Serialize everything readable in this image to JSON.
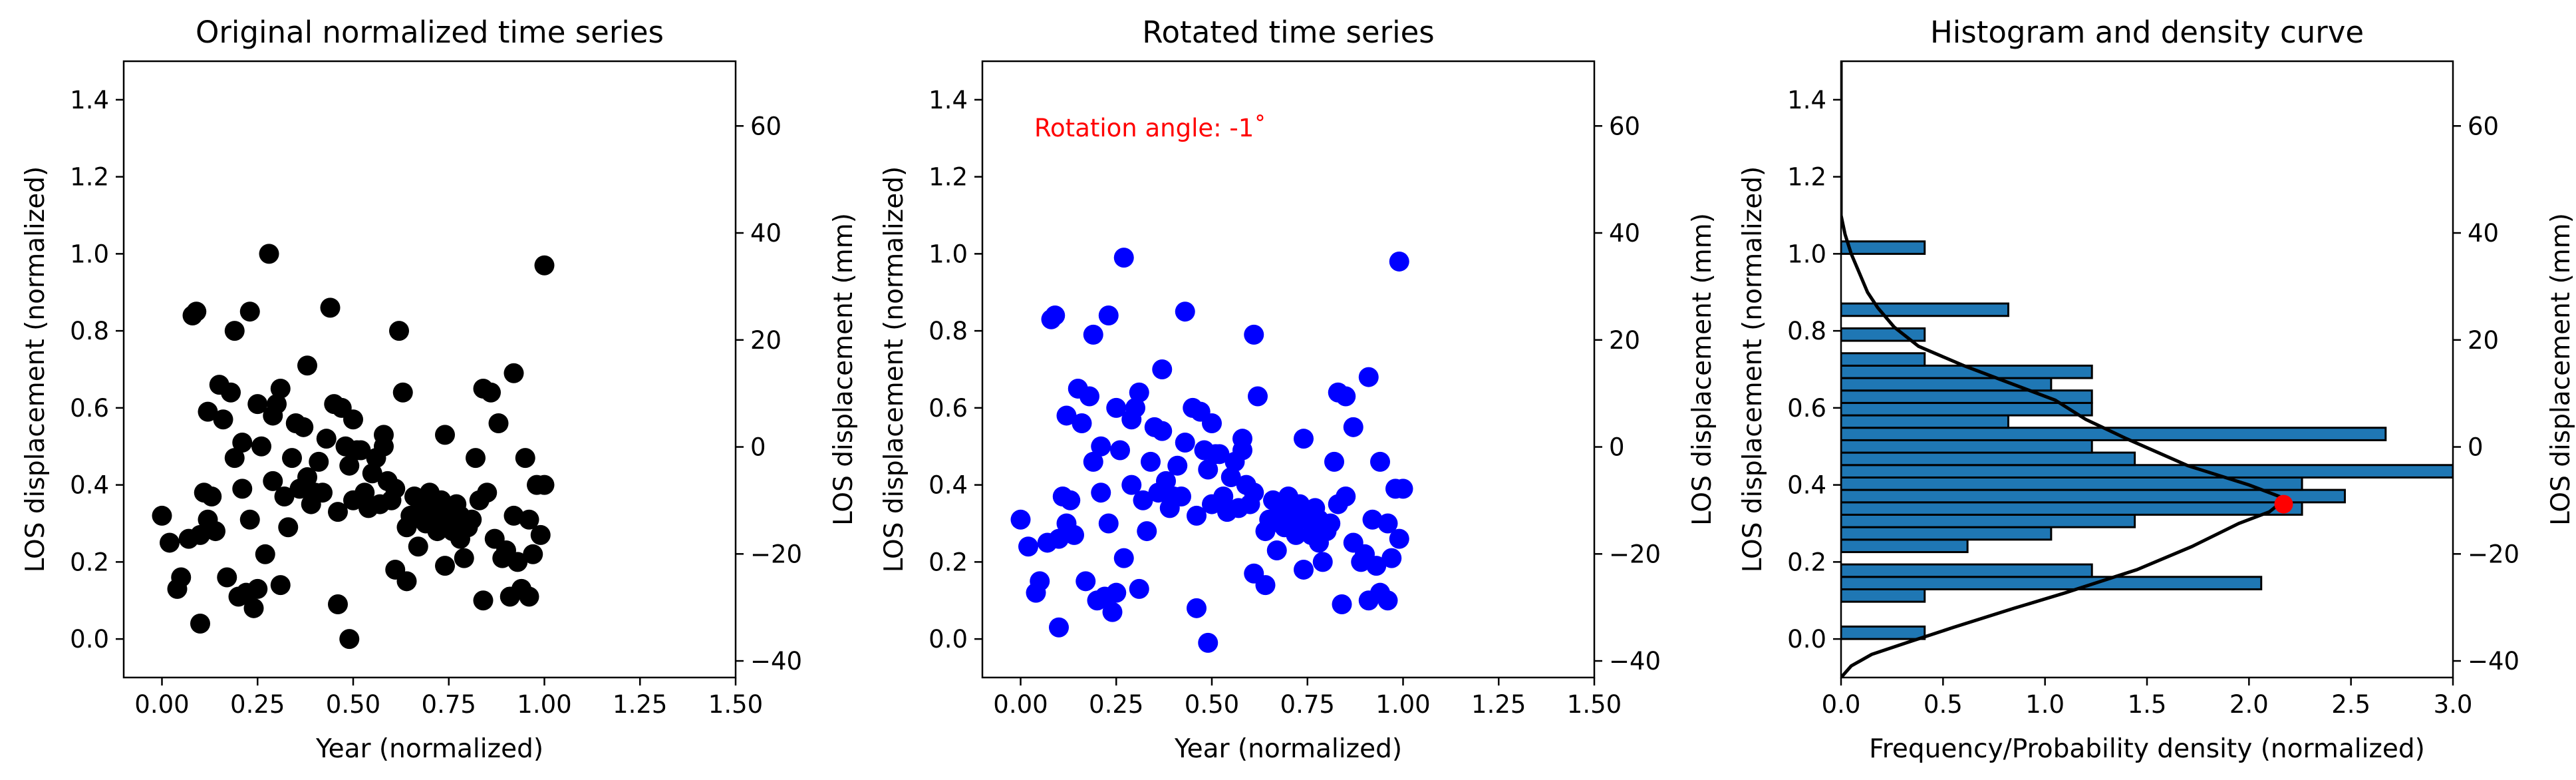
{
  "chart_data": [
    {
      "type": "scatter",
      "title": "Original normalized time series",
      "xlabel": "Year (normalized)",
      "ylabel": "LOS displacement (normalized)",
      "y2label": "LOS displacement (mm)",
      "xlim": [
        -0.1,
        1.5
      ],
      "ylim": [
        -0.1,
        1.5
      ],
      "y2lim": [
        -43.1,
        72.1
      ],
      "xticks": [
        "0.00",
        "0.25",
        "0.50",
        "0.75",
        "1.00",
        "1.25",
        "1.50"
      ],
      "yticks": [
        "0.0",
        "0.2",
        "0.4",
        "0.6",
        "0.8",
        "1.0",
        "1.2",
        "1.4"
      ],
      "y2ticks": [
        "−40",
        "−20",
        "0",
        "20",
        "40",
        "60"
      ],
      "grid": false,
      "marker_color": "#000000",
      "points": [
        [
          0.0,
          0.32
        ],
        [
          0.02,
          0.25
        ],
        [
          0.04,
          0.13
        ],
        [
          0.05,
          0.16
        ],
        [
          0.07,
          0.26
        ],
        [
          0.08,
          0.84
        ],
        [
          0.09,
          0.85
        ],
        [
          0.1,
          0.04
        ],
        [
          0.1,
          0.27
        ],
        [
          0.11,
          0.38
        ],
        [
          0.12,
          0.31
        ],
        [
          0.12,
          0.59
        ],
        [
          0.13,
          0.37
        ],
        [
          0.14,
          0.28
        ],
        [
          0.15,
          0.66
        ],
        [
          0.16,
          0.57
        ],
        [
          0.17,
          0.16
        ],
        [
          0.18,
          0.64
        ],
        [
          0.19,
          0.8
        ],
        [
          0.19,
          0.47
        ],
        [
          0.2,
          0.11
        ],
        [
          0.21,
          0.51
        ],
        [
          0.21,
          0.39
        ],
        [
          0.22,
          0.12
        ],
        [
          0.23,
          0.31
        ],
        [
          0.23,
          0.85
        ],
        [
          0.24,
          0.08
        ],
        [
          0.25,
          0.13
        ],
        [
          0.25,
          0.61
        ],
        [
          0.26,
          0.5
        ],
        [
          0.27,
          0.22
        ],
        [
          0.28,
          1.0
        ],
        [
          0.29,
          0.41
        ],
        [
          0.29,
          0.58
        ],
        [
          0.3,
          0.61
        ],
        [
          0.31,
          0.14
        ],
        [
          0.31,
          0.65
        ],
        [
          0.32,
          0.37
        ],
        [
          0.33,
          0.29
        ],
        [
          0.34,
          0.47
        ],
        [
          0.35,
          0.56
        ],
        [
          0.36,
          0.39
        ],
        [
          0.37,
          0.55
        ],
        [
          0.38,
          0.71
        ],
        [
          0.38,
          0.42
        ],
        [
          0.39,
          0.35
        ],
        [
          0.4,
          0.38
        ],
        [
          0.41,
          0.46
        ],
        [
          0.42,
          0.38
        ],
        [
          0.43,
          0.52
        ],
        [
          0.44,
          0.86
        ],
        [
          0.45,
          0.61
        ],
        [
          0.46,
          0.33
        ],
        [
          0.46,
          0.09
        ],
        [
          0.47,
          0.6
        ],
        [
          0.48,
          0.5
        ],
        [
          0.49,
          0.0
        ],
        [
          0.49,
          0.45
        ],
        [
          0.5,
          0.57
        ],
        [
          0.5,
          0.36
        ],
        [
          0.51,
          0.49
        ],
        [
          0.52,
          0.49
        ],
        [
          0.53,
          0.38
        ],
        [
          0.54,
          0.34
        ],
        [
          0.55,
          0.43
        ],
        [
          0.56,
          0.47
        ],
        [
          0.57,
          0.35
        ],
        [
          0.58,
          0.53
        ],
        [
          0.58,
          0.5
        ],
        [
          0.59,
          0.41
        ],
        [
          0.6,
          0.36
        ],
        [
          0.61,
          0.18
        ],
        [
          0.61,
          0.39
        ],
        [
          0.62,
          0.8
        ],
        [
          0.63,
          0.64
        ],
        [
          0.64,
          0.15
        ],
        [
          0.64,
          0.29
        ],
        [
          0.65,
          0.32
        ],
        [
          0.66,
          0.37
        ],
        [
          0.67,
          0.24
        ],
        [
          0.68,
          0.31
        ],
        [
          0.68,
          0.35
        ],
        [
          0.69,
          0.3
        ],
        [
          0.7,
          0.38
        ],
        [
          0.71,
          0.34
        ],
        [
          0.72,
          0.32
        ],
        [
          0.72,
          0.28
        ],
        [
          0.73,
          0.36
        ],
        [
          0.74,
          0.19
        ],
        [
          0.74,
          0.53
        ],
        [
          0.75,
          0.32
        ],
        [
          0.76,
          0.28
        ],
        [
          0.77,
          0.35
        ],
        [
          0.78,
          0.26
        ],
        [
          0.78,
          0.32
        ],
        [
          0.79,
          0.21
        ],
        [
          0.8,
          0.29
        ],
        [
          0.81,
          0.31
        ],
        [
          0.82,
          0.47
        ],
        [
          0.83,
          0.36
        ],
        [
          0.84,
          0.1
        ],
        [
          0.84,
          0.65
        ],
        [
          0.85,
          0.38
        ],
        [
          0.86,
          0.64
        ],
        [
          0.87,
          0.26
        ],
        [
          0.88,
          0.56
        ],
        [
          0.89,
          0.21
        ],
        [
          0.9,
          0.23
        ],
        [
          0.91,
          0.11
        ],
        [
          0.92,
          0.32
        ],
        [
          0.92,
          0.69
        ],
        [
          0.93,
          0.2
        ],
        [
          0.94,
          0.13
        ],
        [
          0.95,
          0.47
        ],
        [
          0.96,
          0.11
        ],
        [
          0.96,
          0.31
        ],
        [
          0.97,
          0.22
        ],
        [
          0.98,
          0.4
        ],
        [
          0.99,
          0.27
        ],
        [
          1.0,
          0.97
        ],
        [
          1.0,
          0.4
        ]
      ]
    },
    {
      "type": "scatter",
      "title": "Rotated time series",
      "xlabel": "Year (normalized)",
      "ylabel": "LOS displacement (normalized)",
      "y2label": "LOS displacement (mm)",
      "xlim": [
        -0.1,
        1.5
      ],
      "ylim": [
        -0.1,
        1.5
      ],
      "y2lim": [
        -43.1,
        72.1
      ],
      "xticks": [
        "0.00",
        "0.25",
        "0.50",
        "0.75",
        "1.00",
        "1.25",
        "1.50"
      ],
      "yticks": [
        "0.0",
        "0.2",
        "0.4",
        "0.6",
        "0.8",
        "1.0",
        "1.2",
        "1.4"
      ],
      "y2ticks": [
        "−40",
        "−20",
        "0",
        "20",
        "40",
        "60"
      ],
      "grid": false,
      "marker_color": "#0000ff",
      "annotation": "Rotation angle: -1$^\\circ$",
      "annotation_display": "Rotation angle: -1˚",
      "annotation_color": "#ff0000",
      "points": [
        [
          0.0,
          0.31
        ],
        [
          0.02,
          0.24
        ],
        [
          0.04,
          0.12
        ],
        [
          0.05,
          0.15
        ],
        [
          0.07,
          0.25
        ],
        [
          0.08,
          0.83
        ],
        [
          0.09,
          0.84
        ],
        [
          0.1,
          0.03
        ],
        [
          0.1,
          0.26
        ],
        [
          0.11,
          0.37
        ],
        [
          0.12,
          0.3
        ],
        [
          0.12,
          0.58
        ],
        [
          0.13,
          0.36
        ],
        [
          0.14,
          0.27
        ],
        [
          0.15,
          0.65
        ],
        [
          0.16,
          0.56
        ],
        [
          0.17,
          0.15
        ],
        [
          0.18,
          0.63
        ],
        [
          0.19,
          0.79
        ],
        [
          0.19,
          0.46
        ],
        [
          0.2,
          0.1
        ],
        [
          0.21,
          0.5
        ],
        [
          0.21,
          0.38
        ],
        [
          0.22,
          0.11
        ],
        [
          0.23,
          0.3
        ],
        [
          0.23,
          0.84
        ],
        [
          0.24,
          0.07
        ],
        [
          0.25,
          0.12
        ],
        [
          0.25,
          0.6
        ],
        [
          0.26,
          0.49
        ],
        [
          0.27,
          0.21
        ],
        [
          0.27,
          0.99
        ],
        [
          0.29,
          0.4
        ],
        [
          0.29,
          0.57
        ],
        [
          0.3,
          0.6
        ],
        [
          0.31,
          0.13
        ],
        [
          0.31,
          0.64
        ],
        [
          0.32,
          0.36
        ],
        [
          0.33,
          0.28
        ],
        [
          0.34,
          0.46
        ],
        [
          0.35,
          0.55
        ],
        [
          0.36,
          0.38
        ],
        [
          0.37,
          0.54
        ],
        [
          0.37,
          0.7
        ],
        [
          0.38,
          0.41
        ],
        [
          0.39,
          0.34
        ],
        [
          0.4,
          0.37
        ],
        [
          0.41,
          0.45
        ],
        [
          0.42,
          0.37
        ],
        [
          0.43,
          0.51
        ],
        [
          0.43,
          0.85
        ],
        [
          0.45,
          0.6
        ],
        [
          0.46,
          0.32
        ],
        [
          0.46,
          0.08
        ],
        [
          0.47,
          0.59
        ],
        [
          0.48,
          0.49
        ],
        [
          0.49,
          -0.01
        ],
        [
          0.49,
          0.44
        ],
        [
          0.5,
          0.56
        ],
        [
          0.5,
          0.35
        ],
        [
          0.51,
          0.48
        ],
        [
          0.52,
          0.48
        ],
        [
          0.53,
          0.37
        ],
        [
          0.54,
          0.33
        ],
        [
          0.55,
          0.42
        ],
        [
          0.56,
          0.46
        ],
        [
          0.57,
          0.34
        ],
        [
          0.58,
          0.52
        ],
        [
          0.58,
          0.49
        ],
        [
          0.59,
          0.4
        ],
        [
          0.6,
          0.35
        ],
        [
          0.61,
          0.17
        ],
        [
          0.61,
          0.38
        ],
        [
          0.61,
          0.79
        ],
        [
          0.62,
          0.63
        ],
        [
          0.64,
          0.14
        ],
        [
          0.64,
          0.28
        ],
        [
          0.65,
          0.31
        ],
        [
          0.66,
          0.36
        ],
        [
          0.67,
          0.23
        ],
        [
          0.68,
          0.3
        ],
        [
          0.68,
          0.34
        ],
        [
          0.69,
          0.29
        ],
        [
          0.7,
          0.37
        ],
        [
          0.71,
          0.33
        ],
        [
          0.72,
          0.31
        ],
        [
          0.72,
          0.27
        ],
        [
          0.73,
          0.35
        ],
        [
          0.74,
          0.18
        ],
        [
          0.74,
          0.52
        ],
        [
          0.75,
          0.31
        ],
        [
          0.76,
          0.27
        ],
        [
          0.77,
          0.34
        ],
        [
          0.78,
          0.25
        ],
        [
          0.78,
          0.31
        ],
        [
          0.79,
          0.2
        ],
        [
          0.8,
          0.28
        ],
        [
          0.81,
          0.3
        ],
        [
          0.82,
          0.46
        ],
        [
          0.83,
          0.35
        ],
        [
          0.84,
          0.09
        ],
        [
          0.83,
          0.64
        ],
        [
          0.85,
          0.37
        ],
        [
          0.85,
          0.63
        ],
        [
          0.87,
          0.25
        ],
        [
          0.87,
          0.55
        ],
        [
          0.89,
          0.2
        ],
        [
          0.9,
          0.22
        ],
        [
          0.91,
          0.1
        ],
        [
          0.92,
          0.31
        ],
        [
          0.91,
          0.68
        ],
        [
          0.93,
          0.19
        ],
        [
          0.94,
          0.12
        ],
        [
          0.94,
          0.46
        ],
        [
          0.96,
          0.1
        ],
        [
          0.96,
          0.3
        ],
        [
          0.97,
          0.21
        ],
        [
          0.98,
          0.39
        ],
        [
          0.99,
          0.26
        ],
        [
          0.99,
          0.98
        ],
        [
          1.0,
          0.39
        ]
      ]
    },
    {
      "type": "bar",
      "orientation": "horizontal",
      "title": "Histogram and density curve",
      "xlabel": "Frequency/Probability density (normalized)",
      "ylabel": "LOS displacement (normalized)",
      "y2label": "LOS displacement (mm)",
      "xlim": [
        0.0,
        3.0
      ],
      "ylim": [
        -0.1,
        1.5
      ],
      "y2lim": [
        -43.1,
        72.1
      ],
      "xticks": [
        "0.0",
        "0.5",
        "1.0",
        "1.5",
        "2.0",
        "2.5",
        "3.0"
      ],
      "yticks": [
        "0.0",
        "0.2",
        "0.4",
        "0.6",
        "0.8",
        "1.0",
        "1.2",
        "1.4"
      ],
      "y2ticks": [
        "−40",
        "−20",
        "0",
        "20",
        "40",
        "60"
      ],
      "grid": false,
      "bar_color": "#1f77b4",
      "bar_edge_color": "#000000",
      "bin_width": 0.0323,
      "bins": [
        {
          "y": 0.0,
          "value": 0.41
        },
        {
          "y": 0.0967,
          "value": 0.41
        },
        {
          "y": 0.129,
          "value": 2.06
        },
        {
          "y": 0.1613,
          "value": 1.23
        },
        {
          "y": 0.2256,
          "value": 0.62
        },
        {
          "y": 0.258,
          "value": 1.03
        },
        {
          "y": 0.2903,
          "value": 1.44
        },
        {
          "y": 0.3226,
          "value": 2.26
        },
        {
          "y": 0.3548,
          "value": 2.47
        },
        {
          "y": 0.3871,
          "value": 2.26
        },
        {
          "y": 0.4193,
          "value": 3.0
        },
        {
          "y": 0.4516,
          "value": 1.44
        },
        {
          "y": 0.4838,
          "value": 1.23
        },
        {
          "y": 0.5161,
          "value": 2.67
        },
        {
          "y": 0.5484,
          "value": 0.82
        },
        {
          "y": 0.5806,
          "value": 1.23
        },
        {
          "y": 0.6129,
          "value": 1.23
        },
        {
          "y": 0.6451,
          "value": 1.03
        },
        {
          "y": 0.6774,
          "value": 1.23
        },
        {
          "y": 0.7096,
          "value": 0.41
        },
        {
          "y": 0.7742,
          "value": 0.41
        },
        {
          "y": 0.8387,
          "value": 0.82
        },
        {
          "y": 0.9999,
          "value": 0.41
        }
      ],
      "density_curve": [
        [
          0.0,
          -0.1
        ],
        [
          0.05,
          -0.07
        ],
        [
          0.15,
          -0.04
        ],
        [
          0.32,
          -0.01
        ],
        [
          0.55,
          0.03
        ],
        [
          0.85,
          0.08
        ],
        [
          1.1,
          0.12
        ],
        [
          1.45,
          0.18
        ],
        [
          1.72,
          0.24
        ],
        [
          1.95,
          0.3
        ],
        [
          2.1,
          0.33
        ],
        [
          2.17,
          0.36
        ],
        [
          2.15,
          0.37
        ],
        [
          2.0,
          0.4
        ],
        [
          1.7,
          0.45
        ],
        [
          1.4,
          0.52
        ],
        [
          1.2,
          0.57
        ],
        [
          1.05,
          0.62
        ],
        [
          0.8,
          0.67
        ],
        [
          0.6,
          0.71
        ],
        [
          0.38,
          0.76
        ],
        [
          0.26,
          0.81
        ],
        [
          0.18,
          0.86
        ],
        [
          0.13,
          0.9
        ],
        [
          0.09,
          0.95
        ],
        [
          0.05,
          1.0
        ],
        [
          0.02,
          1.05
        ],
        [
          0.0,
          1.1
        ],
        [
          0.0,
          1.5
        ]
      ],
      "density_color": "#000000",
      "highlight_point": [
        2.17,
        0.35
      ],
      "highlight_color": "#ff0000"
    }
  ]
}
